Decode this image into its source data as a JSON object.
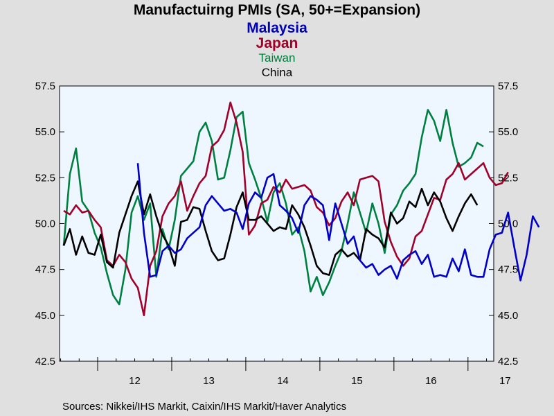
{
  "chart_data": {
    "type": "line",
    "title_lines": [
      "Manufactuirng PMIs (SA, 50+=Expansion)",
      "Malaysia",
      "Japan",
      "Taiwan",
      "China"
    ],
    "source": "Sources:  Nikkei/IHS Markit, Caixin/IHS Markit/Haver Analytics",
    "ylim": [
      42.5,
      57.5
    ],
    "yticks": [
      "42.5",
      "45.0",
      "47.5",
      "50.0",
      "52.5",
      "55.0",
      "57.5"
    ],
    "xticks": [
      "12",
      "13",
      "14",
      "15",
      "16",
      "17"
    ],
    "x_start": "2011-07",
    "x_end": "2017-04",
    "grid": false,
    "colors": {
      "background": "#e0e0e0",
      "plot_area": "#eef6ff",
      "malaysia": "#0000c8",
      "japan": "#a0002a",
      "taiwan": "#008040",
      "china": "#000000"
    },
    "series": [
      {
        "name": "Malaysia",
        "start": "2012-07",
        "values": [
          53.3,
          49.5,
          47.1,
          47.2,
          48.5,
          48.8,
          48.4,
          48.6,
          49.2,
          49.5,
          49.8,
          51.0,
          51.5,
          51.1,
          50.7,
          50.8,
          50.6,
          49.7,
          51.1,
          51.7,
          51.4,
          52.5,
          52.7,
          51.0,
          50.7,
          50.3,
          49.5,
          51.0,
          51.5,
          51.3,
          51.0,
          49.1,
          51.1,
          50.0,
          48.9,
          49.3,
          48.0,
          47.6,
          47.8,
          47.2,
          47.5,
          47.7,
          47.0,
          48.0,
          48.3,
          48.5,
          47.8,
          48.3,
          47.1,
          47.2,
          47.1,
          48.1,
          47.4,
          48.6,
          47.2,
          47.1,
          47.1,
          48.6,
          49.4,
          49.5,
          50.6,
          48.7,
          46.9,
          48.3,
          50.4,
          49.8
        ]
      },
      {
        "name": "Japan",
        "start": "2011-07",
        "values": [
          50.7,
          50.5,
          51.0,
          50.6,
          50.7,
          50.2,
          49.8,
          48.0,
          47.7,
          48.3,
          47.9,
          47.0,
          46.5,
          45.0,
          47.7,
          48.5,
          50.4,
          51.1,
          51.5,
          52.3,
          50.7,
          51.5,
          52.2,
          52.6,
          54.2,
          54.5,
          55.1,
          56.6,
          55.5,
          53.9,
          49.4,
          49.9,
          51.1,
          51.3,
          52.0,
          51.7,
          52.4,
          51.9,
          52.0,
          52.1,
          51.8,
          50.9,
          50.6,
          49.9,
          50.3,
          51.2,
          51.7,
          51.0,
          52.4,
          52.5,
          52.6,
          52.3,
          50.1,
          49.0,
          48.2,
          47.7,
          48.1,
          49.3,
          49.6,
          50.5,
          51.4,
          51.3,
          52.4,
          52.7,
          53.3,
          52.4,
          52.7,
          53.0,
          53.3,
          52.5,
          52.1,
          52.2,
          52.8
        ]
      },
      {
        "name": "Taiwan",
        "start": "2011-07",
        "values": [
          48.8,
          52.7,
          54.1,
          51.2,
          50.7,
          49.5,
          48.7,
          47.3,
          46.1,
          45.6,
          47.5,
          50.6,
          51.5,
          50.2,
          51.1,
          47.1,
          49.7,
          48.6,
          50.2,
          52.6,
          53.0,
          53.4,
          55.0,
          55.5,
          54.5,
          52.4,
          52.5,
          54.0,
          55.8,
          56.1,
          53.3,
          52.4,
          51.4,
          50.1,
          51.7,
          52.2,
          51.1,
          49.4,
          49.8,
          48.5,
          46.3,
          47.1,
          46.1,
          46.8,
          47.7,
          48.5,
          50.0,
          51.7,
          50.6,
          49.5,
          51.1,
          50.0,
          48.4,
          50.5,
          51.0,
          51.8,
          52.2,
          52.7,
          54.7,
          56.2,
          55.6,
          54.5,
          56.2,
          54.4,
          53.1,
          53.3,
          53.6,
          54.4,
          54.2
        ]
      },
      {
        "name": "China",
        "start": "2011-07",
        "values": [
          48.8,
          49.7,
          48.3,
          49.3,
          48.4,
          48.3,
          49.4,
          47.9,
          47.6,
          49.5,
          50.5,
          51.5,
          52.3,
          50.5,
          51.6,
          50.4,
          49.4,
          48.8,
          47.7,
          50.1,
          50.2,
          50.9,
          50.8,
          49.6,
          48.5,
          48.0,
          48.1,
          49.4,
          50.9,
          51.7,
          50.2,
          50.2,
          50.4,
          50.0,
          49.6,
          49.8,
          49.7,
          51.0,
          50.5,
          49.8,
          48.8,
          47.7,
          47.3,
          47.2,
          48.3,
          48.6,
          48.2,
          48.4,
          48.0,
          49.7,
          49.4,
          49.2,
          48.7,
          50.6,
          50.0,
          50.3,
          51.2,
          50.9,
          51.9,
          51.0,
          51.7,
          51.2,
          50.3,
          49.6,
          50.4,
          51.1,
          51.6,
          51.0
        ]
      }
    ]
  }
}
